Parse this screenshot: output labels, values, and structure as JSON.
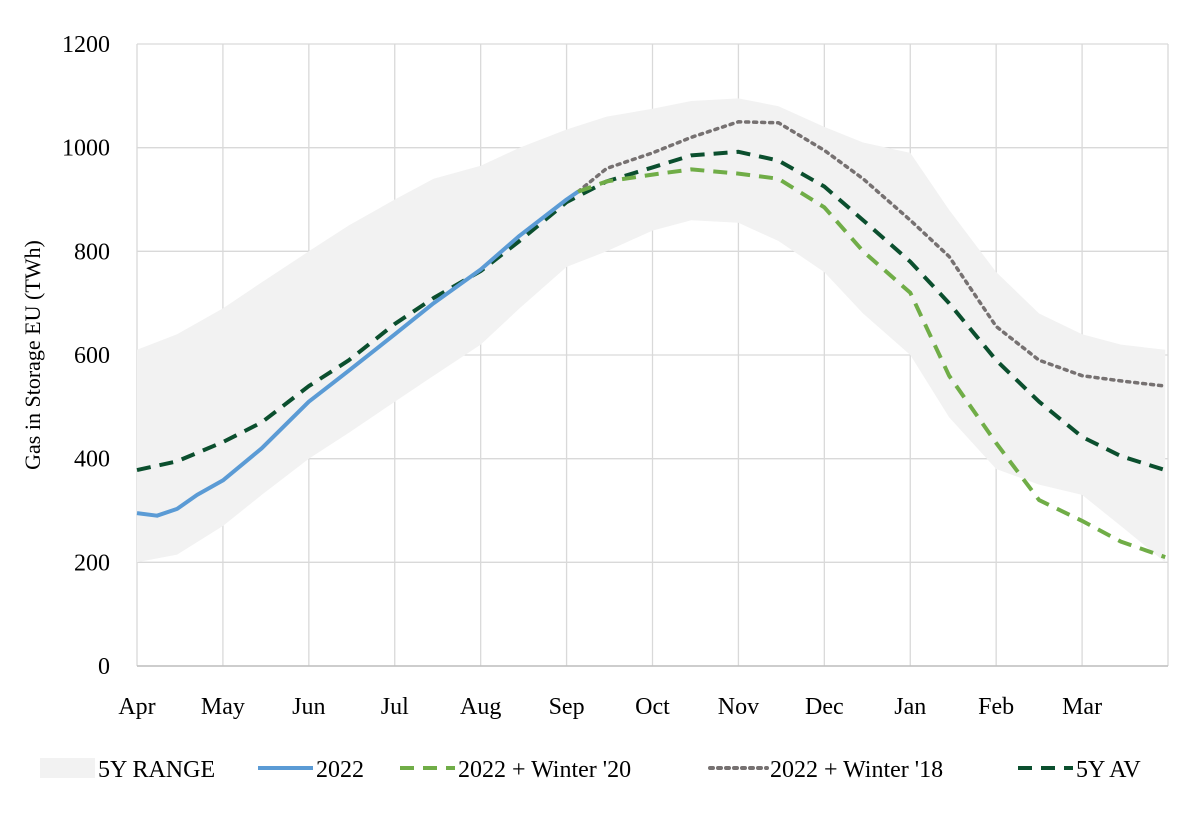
{
  "chart_data": {
    "type": "line",
    "title": "",
    "xlabel": "",
    "ylabel": "Gas in Storage EU (TWh)",
    "ylim": [
      0,
      1200
    ],
    "yticks": [
      0,
      200,
      400,
      600,
      800,
      1000,
      1200
    ],
    "xlim": [
      "2022-04-01",
      "2023-04-01"
    ],
    "xtick_labels": [
      "Apr",
      "May",
      "Jun",
      "Jul",
      "Aug",
      "Sep",
      "Oct",
      "Nov",
      "Dec",
      "Jan",
      "Feb",
      "Mar"
    ],
    "grid": true,
    "legend_position": "bottom",
    "x": [
      "2022-04-01",
      "2022-04-15",
      "2022-05-01",
      "2022-05-15",
      "2022-06-01",
      "2022-06-15",
      "2022-07-01",
      "2022-07-15",
      "2022-08-01",
      "2022-08-15",
      "2022-09-01",
      "2022-09-15",
      "2022-10-01",
      "2022-10-15",
      "2022-11-01",
      "2022-11-15",
      "2022-12-01",
      "2022-12-15",
      "2023-01-01",
      "2023-01-15",
      "2023-02-01",
      "2023-02-15",
      "2023-03-01",
      "2023-03-15",
      "2023-03-31"
    ],
    "range": {
      "name": "5Y RANGE",
      "color": "#F2F2F2",
      "upper": [
        610,
        640,
        690,
        740,
        800,
        850,
        900,
        940,
        965,
        1000,
        1035,
        1060,
        1075,
        1090,
        1095,
        1080,
        1040,
        1010,
        990,
        880,
        760,
        680,
        640,
        620,
        610
      ],
      "lower": [
        200,
        215,
        270,
        330,
        400,
        450,
        510,
        560,
        620,
        690,
        770,
        800,
        840,
        860,
        855,
        820,
        760,
        680,
        600,
        480,
        380,
        350,
        330,
        270,
        200
      ]
    },
    "series": [
      {
        "name": "2022",
        "color": "#5B9BD5",
        "style": "solid",
        "x": [
          "2022-04-01",
          "2022-04-08",
          "2022-04-15",
          "2022-04-22",
          "2022-05-01",
          "2022-05-15",
          "2022-06-01",
          "2022-06-15",
          "2022-07-01",
          "2022-07-15",
          "2022-08-01",
          "2022-08-15",
          "2022-09-01",
          "2022-09-05"
        ],
        "values": [
          295,
          290,
          303,
          330,
          358,
          420,
          510,
          570,
          640,
          700,
          765,
          830,
          900,
          915
        ]
      },
      {
        "name": "2022 + Winter '20",
        "color": "#70AD47",
        "style": "dashed",
        "x": [
          "2022-09-05",
          "2022-09-15",
          "2022-10-01",
          "2022-10-15",
          "2022-11-01",
          "2022-11-15",
          "2022-12-01",
          "2022-12-15",
          "2023-01-01",
          "2023-01-15",
          "2023-02-01",
          "2023-02-15",
          "2023-03-01",
          "2023-03-15",
          "2023-03-31"
        ],
        "values": [
          915,
          935,
          948,
          958,
          950,
          940,
          885,
          800,
          720,
          560,
          430,
          320,
          280,
          240,
          210
        ]
      },
      {
        "name": "2022 + Winter '18",
        "color": "#767171",
        "style": "dotted",
        "x": [
          "2022-09-05",
          "2022-09-15",
          "2022-10-01",
          "2022-10-15",
          "2022-11-01",
          "2022-11-15",
          "2022-12-01",
          "2022-12-15",
          "2023-01-01",
          "2023-01-15",
          "2023-02-01",
          "2023-02-15",
          "2023-03-01",
          "2023-03-15",
          "2023-03-31"
        ],
        "values": [
          915,
          960,
          990,
          1020,
          1050,
          1048,
          995,
          940,
          860,
          790,
          655,
          590,
          560,
          550,
          540
        ]
      },
      {
        "name": "5Y AV",
        "color": "#0B4F2E",
        "style": "dashed",
        "x": [
          "2022-04-01",
          "2022-04-15",
          "2022-05-01",
          "2022-05-15",
          "2022-06-01",
          "2022-06-15",
          "2022-07-01",
          "2022-07-15",
          "2022-08-01",
          "2022-08-15",
          "2022-09-01",
          "2022-09-15",
          "2022-10-01",
          "2022-10-15",
          "2022-11-01",
          "2022-11-15",
          "2022-12-01",
          "2022-12-15",
          "2023-01-01",
          "2023-01-15",
          "2023-02-01",
          "2023-02-15",
          "2023-03-01",
          "2023-03-15",
          "2023-03-31"
        ],
        "values": [
          378,
          395,
          432,
          470,
          540,
          590,
          660,
          710,
          762,
          820,
          895,
          935,
          962,
          985,
          992,
          975,
          925,
          860,
          780,
          700,
          590,
          510,
          442,
          405,
          378
        ]
      }
    ]
  }
}
